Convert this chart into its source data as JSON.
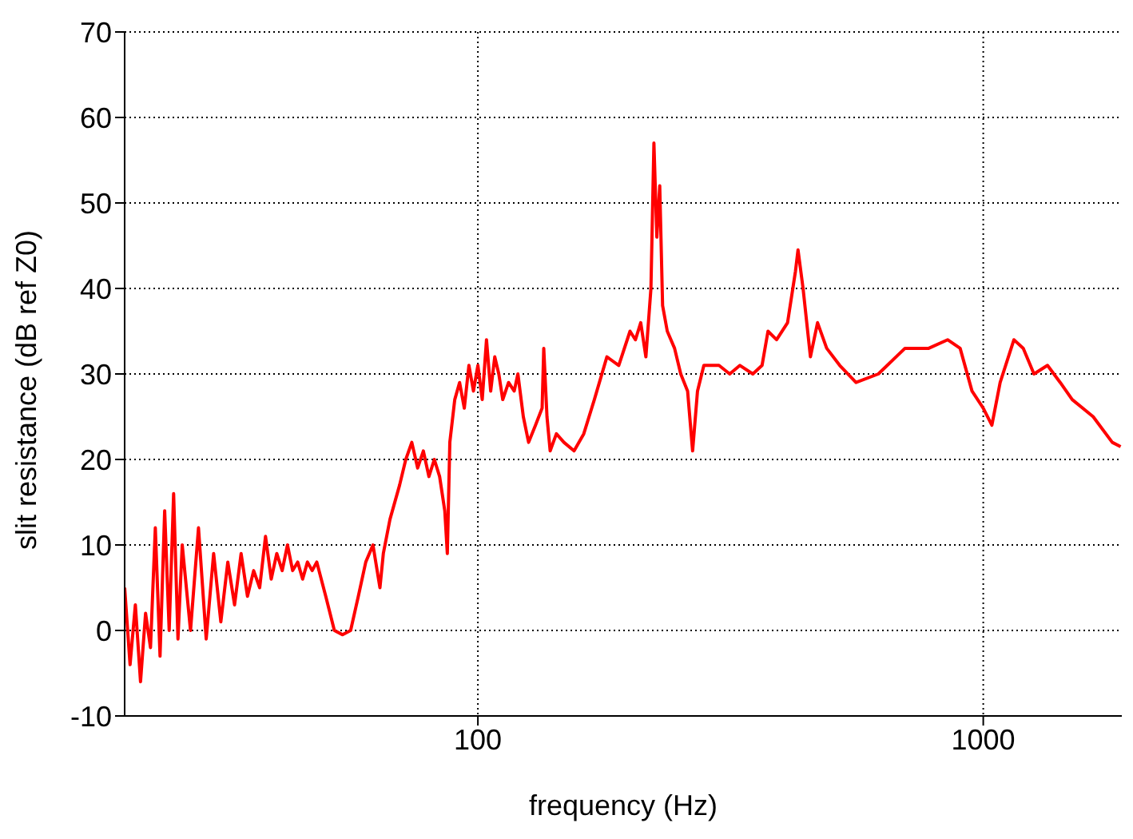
{
  "chart_data": {
    "type": "line",
    "xlabel": "frequency (Hz)",
    "ylabel": "slit resistance (dB ref Z0)",
    "log": "x",
    "grid": true,
    "marker": "none",
    "line_style": "solid",
    "xlim": [
      20,
      1880
    ],
    "xticks": [
      100,
      1000
    ],
    "ylim": [
      -10,
      70
    ],
    "yticks": [
      -10,
      0,
      10,
      20,
      30,
      40,
      50,
      60,
      70
    ],
    "series": [
      {
        "color": "#ff0000",
        "x": [
          20,
          20.5,
          21,
          21.5,
          22,
          22.5,
          23,
          23.5,
          24,
          24.5,
          25,
          25.5,
          26,
          27,
          28,
          29,
          30,
          31,
          32,
          33,
          34,
          35,
          36,
          37,
          38,
          39,
          40,
          41,
          42,
          43,
          44,
          45,
          46,
          47,
          48,
          50,
          52,
          54,
          56,
          58,
          60,
          62,
          64,
          65,
          67,
          70,
          72,
          74,
          76,
          78,
          80,
          82,
          84,
          86,
          87,
          88,
          90,
          92,
          94,
          96,
          98,
          100,
          102,
          104,
          106,
          108,
          110,
          112,
          115,
          118,
          120,
          123,
          126,
          130,
          134,
          135,
          137,
          139,
          143,
          148,
          155,
          162,
          170,
          180,
          190,
          200,
          205,
          210,
          215,
          220,
          223,
          226,
          229,
          232,
          237,
          245,
          252,
          260,
          266,
          272,
          280,
          290,
          300,
          315,
          330,
          350,
          365,
          375,
          390,
          410,
          425,
          430,
          440,
          455,
          470,
          490,
          520,
          560,
          620,
          700,
          780,
          850,
          900,
          950,
          1000,
          1040,
          1080,
          1150,
          1200,
          1260,
          1340,
          1420,
          1500,
          1650,
          1800,
          1870
        ],
        "values": [
          5,
          -4,
          3,
          -6,
          2,
          -2,
          12,
          -3,
          14,
          0,
          16,
          -1,
          10,
          0,
          12,
          -1,
          9,
          1,
          8,
          3,
          9,
          4,
          7,
          5,
          11,
          6,
          9,
          7,
          10,
          7,
          8,
          6,
          8,
          7,
          8,
          4,
          0,
          -0.5,
          0,
          4,
          8,
          10,
          5,
          9,
          13,
          17,
          20,
          22,
          19,
          21,
          18,
          20,
          18,
          14,
          9,
          22,
          27,
          29,
          26,
          31,
          28,
          31,
          27,
          34,
          28,
          32,
          30,
          27,
          29,
          28,
          30,
          25,
          22,
          24,
          26,
          33,
          25,
          21,
          23,
          22,
          21,
          23,
          27,
          32,
          31,
          35,
          34,
          36,
          32,
          40,
          57,
          46,
          52,
          38,
          35,
          33,
          30,
          28,
          21,
          28,
          31,
          31,
          31,
          30,
          31,
          30,
          31,
          35,
          34,
          36,
          42,
          44.5,
          40,
          32,
          36,
          33,
          31,
          29,
          30,
          33,
          33,
          34,
          33,
          28,
          26,
          24,
          29,
          34,
          33,
          30,
          31,
          29,
          27,
          25,
          22,
          21.5
        ]
      }
    ]
  }
}
